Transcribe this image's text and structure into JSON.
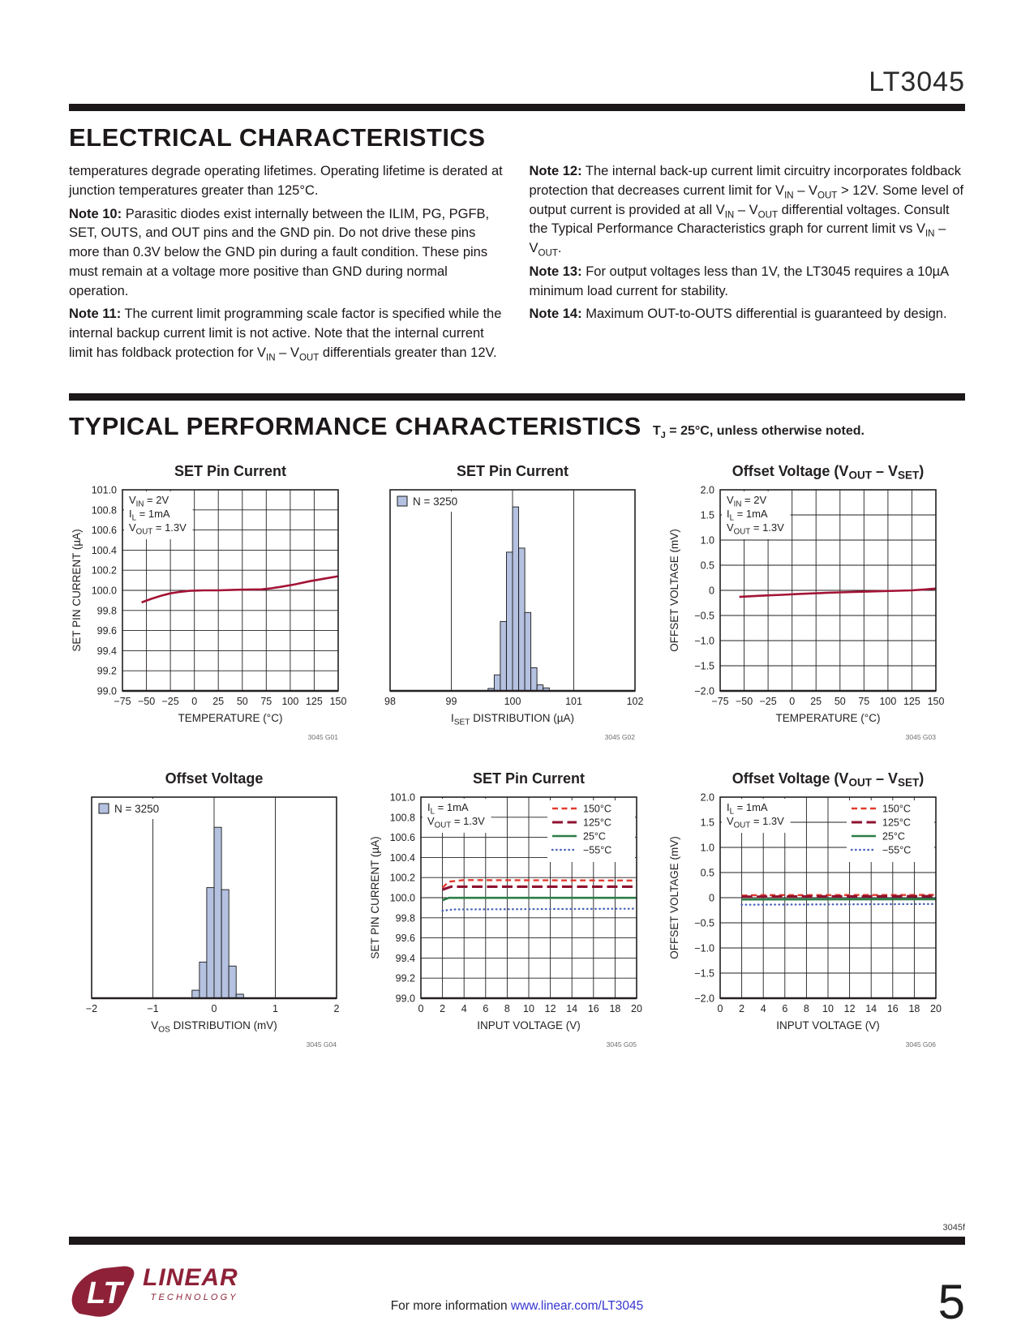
{
  "page": {
    "part_number": "LT3045",
    "doc_code": "3045f",
    "page_number": "5",
    "footer_info_text": "For more information",
    "footer_link": "www.linear.com/LT3045",
    "logo": {
      "monogram": "LT",
      "brand": "LINEAR",
      "sub": "TECHNOLOGY"
    }
  },
  "sections": {
    "electrical": {
      "title": "ELECTRICAL CHARACTERISTICS"
    },
    "typical": {
      "title": "TYPICAL PERFORMANCE CHARACTERISTICS",
      "condition": "T~J~ = 25°C, unless otherwise noted."
    }
  },
  "notes_left": [
    {
      "label": "",
      "text": "temperatures degrade operating lifetimes. Operating lifetime is derated at junction temperatures greater than 125°C."
    },
    {
      "label": "Note 10:",
      "text": "Parasitic diodes exist internally between the ILIM, PG, PGFB, SET, OUTS, and OUT pins and the GND pin. Do not drive these pins more than 0.3V below the GND pin during a fault condition. These pins must remain at a voltage more positive than GND during normal operation."
    },
    {
      "label": "Note 11:",
      "text": "The current limit programming scale factor is specified while the internal backup current limit is not active. Note that the internal current limit has foldback protection for V~IN~ – V~OUT~ differentials greater than 12V."
    }
  ],
  "notes_right": [
    {
      "label": "Note 12:",
      "text": "The internal back-up current limit circuitry incorporates foldback protection that decreases current limit for V~IN~ – V~OUT~ > 12V. Some level of output current is provided at all V~IN~ – V~OUT~ differential voltages. Consult the Typical Performance Characteristics graph for current limit vs V~IN~ – V~OUT~."
    },
    {
      "label": "Note 13:",
      "text": "For output voltages less than 1V, the LT3045 requires a 10µA minimum load current for stability."
    },
    {
      "label": "Note 14:",
      "text": "Maximum OUT-to-OUTS differential is guaranteed by design."
    }
  ],
  "colors": {
    "ink": "#231f20",
    "grid": "#231f20",
    "curve_main": "#a31335",
    "temp_150": "#e23a2e",
    "temp_125": "#8e1230",
    "temp_25": "#2c7d46",
    "temp_m55": "#4a64bb",
    "hist_fill": "#b4c1e0",
    "logo_maroon": "#8e2138",
    "link_blue": "#3535cf"
  },
  "chart_data": [
    {
      "id": "3045 G01",
      "type": "line",
      "title": "SET Pin Current",
      "xlabel": "TEMPERATURE (°C)",
      "ylabel": "SET PIN CURRENT (µA)",
      "x_min": -75,
      "x_max": 150,
      "x_step": 25,
      "x_decimals": 0,
      "y_min": 99.0,
      "y_max": 101.0,
      "y_step": 0.2,
      "y_decimals": 1,
      "annotation": [
        "V~IN~ = 2V",
        "I~L~ = 1mA",
        "V~OUT~ = 1.3V"
      ],
      "series": [
        {
          "name": null,
          "color": "#a31335",
          "style": "solid",
          "width": 2.6,
          "points": [
            [
              -55,
              99.88
            ],
            [
              -45,
              99.915
            ],
            [
              -35,
              99.945
            ],
            [
              -25,
              99.97
            ],
            [
              -15,
              99.985
            ],
            [
              -5,
              99.995
            ],
            [
              10,
              100.0
            ],
            [
              25,
              100.0
            ],
            [
              40,
              100.005
            ],
            [
              55,
              100.008
            ],
            [
              70,
              100.01
            ],
            [
              80,
              100.02
            ],
            [
              90,
              100.035
            ],
            [
              105,
              100.06
            ],
            [
              120,
              100.09
            ],
            [
              135,
              100.115
            ],
            [
              150,
              100.14
            ]
          ]
        }
      ]
    },
    {
      "id": "3045 G02",
      "type": "histogram",
      "title": "SET Pin Current",
      "xlabel": "I~SET~ DISTRIBUTION (µA)",
      "legend_n": "N = 3250",
      "x_min": 98,
      "x_max": 102,
      "x_step": 1,
      "x_decimals": 0,
      "bar_color": "#b4c1e0",
      "bin_width": 0.1,
      "bins": [
        {
          "x": 99.65,
          "h": 0.012
        },
        {
          "x": 99.75,
          "h": 0.08
        },
        {
          "x": 99.85,
          "h": 0.345
        },
        {
          "x": 99.95,
          "h": 0.69
        },
        {
          "x": 100.05,
          "h": 0.915
        },
        {
          "x": 100.15,
          "h": 0.71
        },
        {
          "x": 100.25,
          "h": 0.39
        },
        {
          "x": 100.35,
          "h": 0.115
        },
        {
          "x": 100.45,
          "h": 0.03
        },
        {
          "x": 100.55,
          "h": 0.015
        }
      ]
    },
    {
      "id": "3045 G03",
      "type": "line",
      "title": "Offset Voltage (V~OUT~ – V~SET~)",
      "xlabel": "TEMPERATURE (°C)",
      "ylabel": "OFFSET VOLTAGE (mV)",
      "x_min": -75,
      "x_max": 150,
      "x_step": 25,
      "x_decimals": 0,
      "y_min": -2.0,
      "y_max": 2.0,
      "y_step": 0.5,
      "y_decimals": 1,
      "annotation": [
        "V~IN~ = 2V",
        "I~L~ = 1mA",
        "V~OUT~ = 1.3V"
      ],
      "series": [
        {
          "name": null,
          "color": "#a31335",
          "style": "solid",
          "width": 2.6,
          "points": [
            [
              -55,
              -0.13
            ],
            [
              -40,
              -0.115
            ],
            [
              -25,
              -0.1
            ],
            [
              -10,
              -0.088
            ],
            [
              5,
              -0.075
            ],
            [
              20,
              -0.062
            ],
            [
              35,
              -0.05
            ],
            [
              50,
              -0.04
            ],
            [
              65,
              -0.03
            ],
            [
              80,
              -0.022
            ],
            [
              95,
              -0.015
            ],
            [
              110,
              -0.008
            ],
            [
              125,
              0.0
            ],
            [
              140,
              0.02
            ],
            [
              150,
              0.035
            ]
          ]
        }
      ]
    },
    {
      "id": "3045 G04",
      "type": "histogram",
      "title": "Offset Voltage",
      "xlabel": "V~OS~ DISTRIBUTION (mV)",
      "legend_n": "N = 3250",
      "x_min": -2,
      "x_max": 2,
      "x_step": 1,
      "x_decimals": 0,
      "bar_color": "#b4c1e0",
      "bin_width": 0.12,
      "bins": [
        {
          "x": -0.3,
          "h": 0.04
        },
        {
          "x": -0.18,
          "h": 0.18
        },
        {
          "x": -0.06,
          "h": 0.55
        },
        {
          "x": 0.06,
          "h": 0.85
        },
        {
          "x": 0.18,
          "h": 0.54
        },
        {
          "x": 0.3,
          "h": 0.16
        },
        {
          "x": 0.42,
          "h": 0.02
        }
      ]
    },
    {
      "id": "3045 G05",
      "type": "line",
      "title": "SET Pin Current",
      "xlabel": "INPUT VOLTAGE (V)",
      "ylabel": "SET PIN CURRENT (µA)",
      "x_min": 0,
      "x_max": 20,
      "x_step": 2,
      "x_decimals": 0,
      "y_min": 99.0,
      "y_max": 101.0,
      "y_step": 0.2,
      "y_decimals": 1,
      "annotation": [
        "I~L~ = 1mA",
        "V~OUT~ = 1.3V"
      ],
      "legend": [
        "150°C",
        "125°C",
        "25°C",
        "−55°C"
      ],
      "series": [
        {
          "name": "150°C",
          "color": "#e23a2e",
          "style": "dash-short",
          "width": 2.4,
          "points": [
            [
              2,
              100.1
            ],
            [
              2.6,
              100.16
            ],
            [
              4,
              100.175
            ],
            [
              20,
              100.17
            ]
          ]
        },
        {
          "name": "125°C",
          "color": "#8e1230",
          "style": "dash-long",
          "width": 3.1,
          "points": [
            [
              2,
              100.08
            ],
            [
              2.8,
              100.11
            ],
            [
              20,
              100.11
            ]
          ]
        },
        {
          "name": "25°C",
          "color": "#2c7d46",
          "style": "solid",
          "width": 2.6,
          "points": [
            [
              2,
              99.975
            ],
            [
              2.6,
              99.998
            ],
            [
              20,
              99.998
            ]
          ]
        },
        {
          "name": "−55°C",
          "color": "#4a64bb",
          "style": "dot",
          "width": 2.4,
          "points": [
            [
              2,
              99.87
            ],
            [
              3,
              99.883
            ],
            [
              20,
              99.89
            ]
          ]
        }
      ]
    },
    {
      "id": "3045 G06",
      "type": "line",
      "title": "Offset Voltage (V~OUT~ – V~SET~)",
      "xlabel": "INPUT VOLTAGE (V)",
      "ylabel": "OFFSET VOLTAGE (mV)",
      "x_min": 0,
      "x_max": 20,
      "x_step": 2,
      "x_decimals": 0,
      "y_min": -2.0,
      "y_max": 2.0,
      "y_step": 0.5,
      "y_decimals": 1,
      "annotation": [
        "I~L~ = 1mA",
        "V~OUT~ = 1.3V"
      ],
      "legend": [
        "150°C",
        "125°C",
        "25°C",
        "−55°C"
      ],
      "series": [
        {
          "name": "150°C",
          "color": "#e23a2e",
          "style": "dash-short",
          "width": 2.4,
          "points": [
            [
              2,
              0.04
            ],
            [
              3,
              0.05
            ],
            [
              20,
              0.055
            ]
          ]
        },
        {
          "name": "125°C",
          "color": "#8e1230",
          "style": "dash-long",
          "width": 3.1,
          "points": [
            [
              2,
              0.02
            ],
            [
              20,
              0.03
            ]
          ]
        },
        {
          "name": "25°C",
          "color": "#2c7d46",
          "style": "solid",
          "width": 2.6,
          "points": [
            [
              2,
              -0.035
            ],
            [
              20,
              -0.03
            ]
          ]
        },
        {
          "name": "−55°C",
          "color": "#4a64bb",
          "style": "dot",
          "width": 2.4,
          "points": [
            [
              2,
              -0.14
            ],
            [
              20,
              -0.125
            ]
          ]
        }
      ]
    }
  ]
}
